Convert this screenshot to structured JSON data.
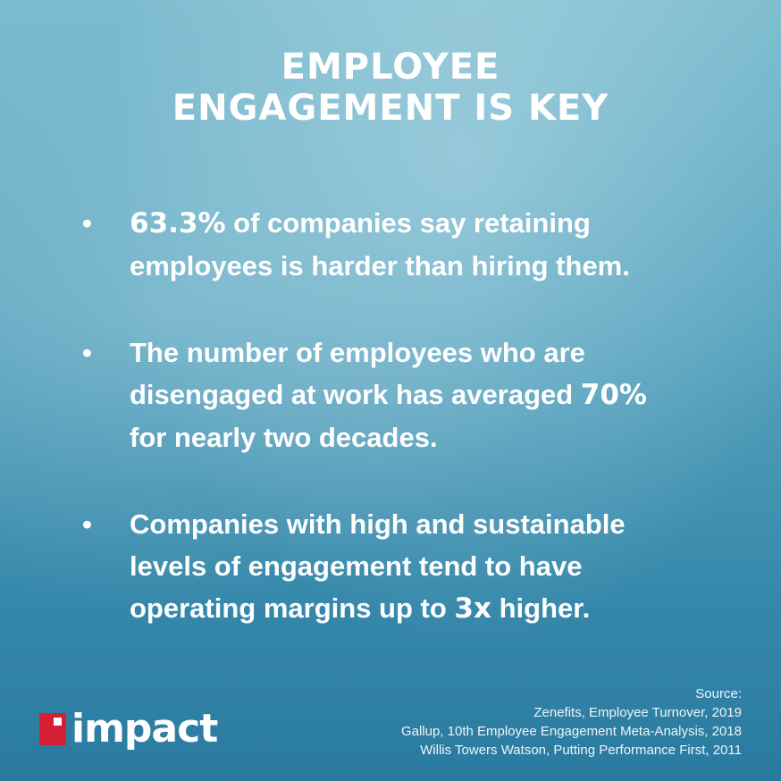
{
  "title": [
    "EMPLOYEE",
    "ENGAGEMENT IS KEY"
  ],
  "bullets": [
    [
      {
        "text": "63.3%",
        "emphasis": true
      },
      {
        "text": " of companies say retaining employees is harder than hiring them.",
        "emphasis": false
      }
    ],
    [
      {
        "text": "The number of employees who are disengaged at work has averaged ",
        "emphasis": false
      },
      {
        "text": "70%",
        "emphasis": true
      },
      {
        "text": " for nearly two decades.",
        "emphasis": false
      }
    ],
    [
      {
        "text": "Companies with high and sustainable levels of engagement tend to have operating margins up to ",
        "emphasis": false
      },
      {
        "text": "3x",
        "emphasis": true
      },
      {
        "text": " higher.",
        "emphasis": false
      }
    ]
  ],
  "source": {
    "heading": "Source:",
    "lines": [
      "Zenefits, Employee Turnover, 2019",
      "Gallup, 10th Employee Engagement Meta-Analysis, 2018",
      "Willis Towers Watson, Putting Performance First, 2011"
    ]
  },
  "logo": "impact"
}
